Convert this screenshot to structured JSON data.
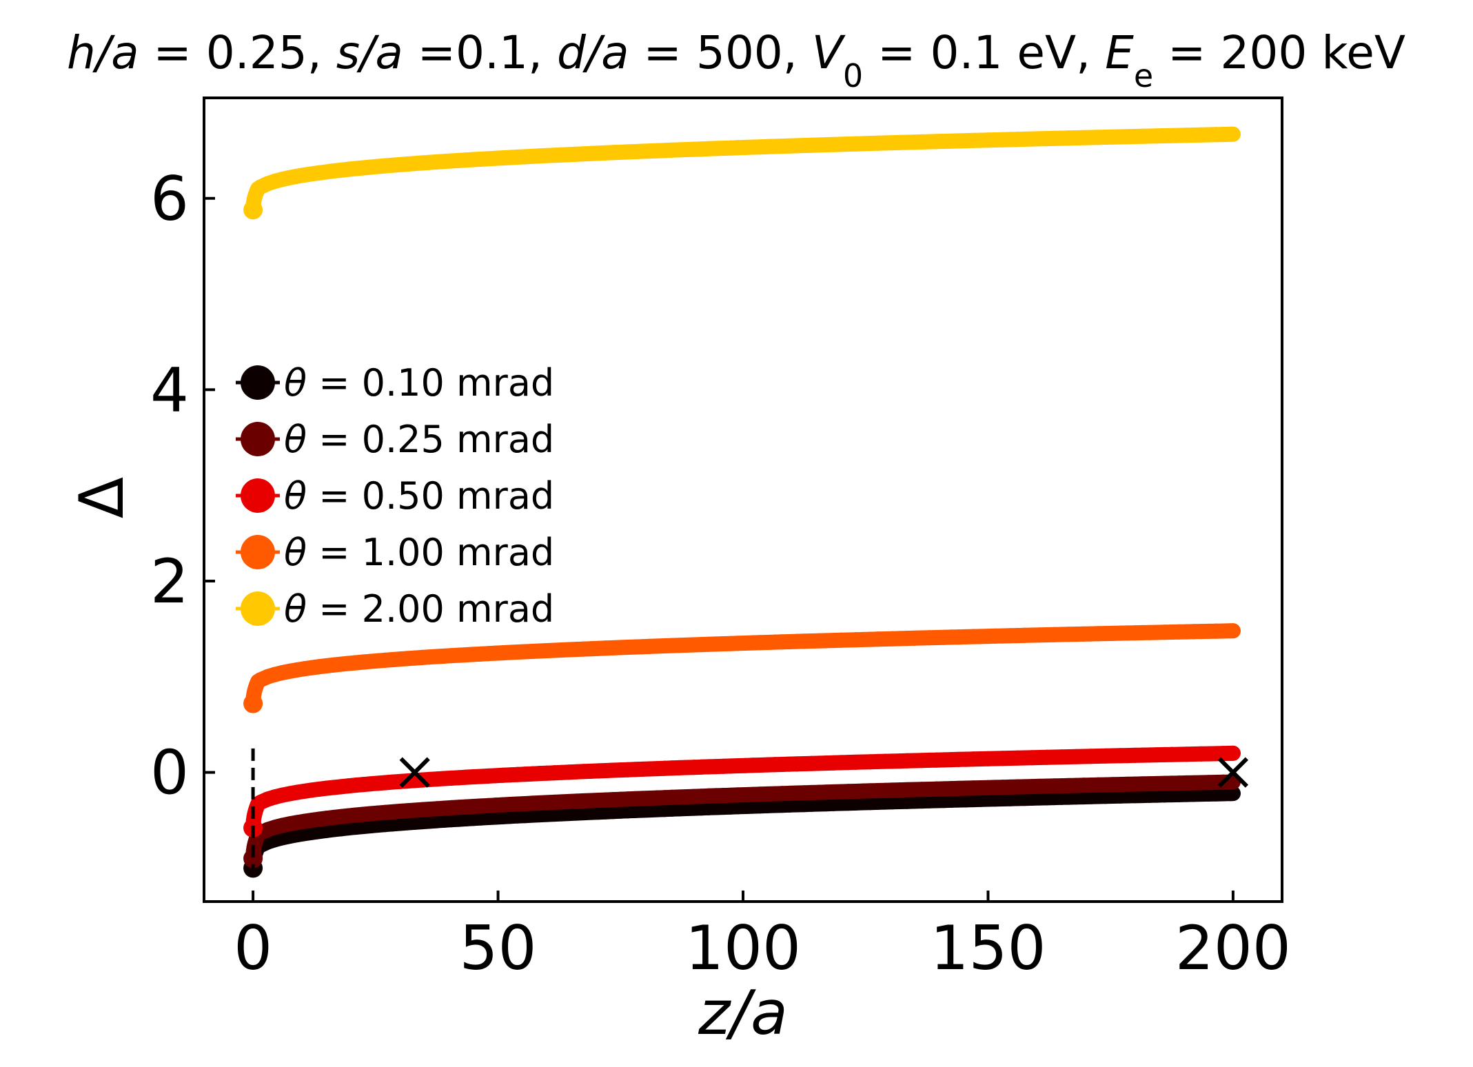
{
  "chart_data": {
    "type": "scatter",
    "title_parts": [
      {
        "t": "h/a",
        "i": true
      },
      {
        "t": " = 0.25, "
      },
      {
        "t": "s/a",
        "i": true
      },
      {
        "t": " =0.1, "
      },
      {
        "t": "d/a",
        "i": true
      },
      {
        "t": " = 500, "
      },
      {
        "t": "V",
        "i": true
      },
      {
        "t": "0",
        "sub": true
      },
      {
        "t": " = 0.1 eV, "
      },
      {
        "t": "E",
        "i": true
      },
      {
        "t": "e",
        "sub": true
      },
      {
        "t": " = 200 keV"
      }
    ],
    "xlabel": "z/a",
    "ylabel": "Δ",
    "xlim": [
      -10,
      210
    ],
    "ylim": [
      -1.35,
      7.05
    ],
    "xticks": [
      0,
      50,
      100,
      150,
      200
    ],
    "yticks": [
      0,
      2,
      4,
      6
    ],
    "legend_position": "center-left",
    "series": [
      {
        "name": "θ = 0.10 mrad",
        "theta": "θ",
        "rest": " = 0.10 mrad",
        "color": "#0d0000",
        "start": -1.0,
        "at_1": -0.78,
        "end": -0.22
      },
      {
        "name": "θ = 0.25 mrad",
        "theta": "θ",
        "rest": " = 0.25 mrad",
        "color": "#6b0000",
        "start": -0.9,
        "at_1": -0.65,
        "end": -0.1
      },
      {
        "name": "θ = 0.50 mrad",
        "theta": "θ",
        "rest": " = 0.50 mrad",
        "color": "#e80000",
        "start": -0.58,
        "at_1": -0.33,
        "end": 0.2
      },
      {
        "name": "θ = 1.00 mrad",
        "theta": "θ",
        "rest": " = 1.00 mrad",
        "color": "#ff5a00",
        "start": 0.72,
        "at_1": 0.95,
        "end": 1.48
      },
      {
        "name": "θ = 2.00 mrad",
        "theta": "θ",
        "rest": " = 2.00 mrad",
        "color": "#ffc800",
        "start": 5.88,
        "at_1": 6.1,
        "end": 6.67
      }
    ],
    "markers": [
      {
        "label": "×",
        "x": 33,
        "y": 0
      },
      {
        "label": "×",
        "x": 200,
        "y": 0
      }
    ],
    "vline": {
      "x": 0,
      "y_from": -1.0,
      "y_to": 0.25,
      "style": "dashed"
    }
  }
}
